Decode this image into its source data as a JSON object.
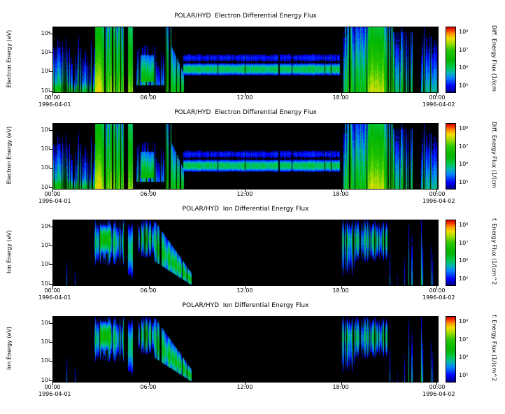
{
  "colors": {
    "background": "#ffffff",
    "plot_background": "#000000",
    "axis": "#000000",
    "colormap_stops": [
      [
        0.0,
        "#000080"
      ],
      [
        0.1,
        "#0000ff"
      ],
      [
        0.22,
        "#0080ff"
      ],
      [
        0.3,
        "#00b4b4"
      ],
      [
        0.38,
        "#00c850"
      ],
      [
        0.5,
        "#00b400"
      ],
      [
        0.65,
        "#28c800"
      ],
      [
        0.75,
        "#a0dc00"
      ],
      [
        0.83,
        "#f0e000"
      ],
      [
        0.9,
        "#ff9600"
      ],
      [
        0.95,
        "#ff3c00"
      ],
      [
        1.0,
        "#c80000"
      ]
    ]
  },
  "chart_data": [
    {
      "type": "heatmap",
      "subtype": "time-energy-spectrogram",
      "title": "POLAR/HYD  Electron Differential Energy Flux",
      "x": {
        "label": "",
        "range_hours": [
          0,
          24
        ],
        "ticks": [
          "00:00",
          "06:00",
          "12:00",
          "18:00",
          "00:00"
        ],
        "date_start": "1996-04-01",
        "date_end": "1996-04-02"
      },
      "y": {
        "label": "Electron Energy (eV)",
        "scale": "log",
        "log_range_eV": [
          0.95,
          4.35
        ],
        "ticks": [
          "10⁴",
          "10³",
          "10²",
          "10¹"
        ]
      },
      "z": {
        "label": "Diff. Energy Flux (1/(cm",
        "scale": "log",
        "log_range": [
          4.7,
          8.3
        ],
        "ticks": [
          "10⁸",
          "10⁷",
          "10⁶",
          "10⁵"
        ]
      },
      "features": [
        {
          "kind": "stripes",
          "t0": 0.0,
          "t1": 2.6,
          "e0": 0.95,
          "e1": 3.3,
          "peak": 6.6,
          "gap": 0.3,
          "spike": 0.92
        },
        {
          "kind": "stripes",
          "t0": 0.0,
          "t1": 2.6,
          "e0": 0.95,
          "e1": 1.7,
          "peak": 7.2,
          "gap": 0.25
        },
        {
          "kind": "block",
          "t0": 2.6,
          "t1": 3.05,
          "e0": 0.95,
          "e1": 4.35,
          "peak": 8.0
        },
        {
          "kind": "stripes",
          "t0": 3.05,
          "t1": 4.45,
          "e0": 0.95,
          "e1": 4.35,
          "peak": 7.7,
          "gap": 0.22
        },
        {
          "kind": "block",
          "t0": 4.65,
          "t1": 4.95,
          "e0": 0.95,
          "e1": 4.35,
          "peak": 7.7
        },
        {
          "kind": "stripes",
          "t0": 5.15,
          "t1": 6.9,
          "e0": 1.3,
          "e1": 3.4,
          "peak": 6.5,
          "gap": 0.2
        },
        {
          "kind": "block",
          "t0": 5.45,
          "t1": 6.25,
          "e0": 1.5,
          "e1": 2.9,
          "peak": 7.0
        },
        {
          "kind": "stripes",
          "t0": 6.95,
          "t1": 7.35,
          "e0": 0.95,
          "e1": 4.35,
          "peak": 7.6,
          "gap": 0.35
        },
        {
          "kind": "dispersion",
          "t0": 7.35,
          "t1": 8.15,
          "eTop0": 3.4,
          "eTop1": 1.9,
          "eBot0": 0.95,
          "eBot1": 0.95,
          "peak": 7.1,
          "gap": 0.15
        },
        {
          "kind": "band",
          "t0": 8.1,
          "t1": 17.85,
          "e0": 1.75,
          "e1": 2.55,
          "peak": 6.4
        },
        {
          "kind": "band",
          "t0": 8.1,
          "t1": 17.85,
          "e0": 2.3,
          "e1": 3.2,
          "peak": 5.4
        },
        {
          "kind": "stripes",
          "t0": 18.05,
          "t1": 19.6,
          "e0": 0.95,
          "e1": 4.35,
          "peak": 7.3,
          "gap": 0.15
        },
        {
          "kind": "block",
          "t0": 19.6,
          "t1": 20.6,
          "e0": 0.95,
          "e1": 4.35,
          "peak": 7.9
        },
        {
          "kind": "stripes",
          "t0": 20.6,
          "t1": 21.2,
          "e0": 0.95,
          "e1": 4.35,
          "peak": 7.5,
          "gap": 0.2
        },
        {
          "kind": "stripes",
          "t0": 21.2,
          "t1": 22.4,
          "e0": 0.95,
          "e1": 4.1,
          "peak": 6.9,
          "gap": 0.3,
          "spike": 0.9
        },
        {
          "kind": "stripes",
          "t0": 22.95,
          "t1": 24.0,
          "e0": 0.95,
          "e1": 3.9,
          "peak": 6.7,
          "gap": 0.35,
          "spike": 0.9
        }
      ]
    },
    {
      "type": "heatmap",
      "subtype": "time-energy-spectrogram",
      "title": "POLAR/HYD  Electron Differential Energy Flux",
      "x": {
        "label": "",
        "range_hours": [
          0,
          24
        ],
        "ticks": [
          "00:00",
          "06:00",
          "12:00",
          "18:00",
          "00:00"
        ],
        "date_start": "1996-04-01",
        "date_end": "1996-04-02"
      },
      "y": {
        "label": "Electron Energy (eV)",
        "scale": "log",
        "log_range_eV": [
          0.95,
          4.35
        ],
        "ticks": [
          "10⁴",
          "10³",
          "10²",
          "10¹"
        ]
      },
      "z": {
        "label": "Diff. Energy Flux (1/(cm",
        "scale": "log",
        "log_range": [
          4.7,
          8.3
        ],
        "ticks": [
          "10⁸",
          "10⁷",
          "10⁶",
          "10⁵"
        ]
      },
      "features": [
        {
          "kind": "stripes",
          "t0": 0.0,
          "t1": 2.6,
          "e0": 0.95,
          "e1": 3.3,
          "peak": 6.6,
          "gap": 0.3,
          "spike": 0.92
        },
        {
          "kind": "stripes",
          "t0": 0.0,
          "t1": 2.6,
          "e0": 0.95,
          "e1": 1.7,
          "peak": 7.2,
          "gap": 0.25
        },
        {
          "kind": "block",
          "t0": 2.6,
          "t1": 3.05,
          "e0": 0.95,
          "e1": 4.35,
          "peak": 8.0
        },
        {
          "kind": "stripes",
          "t0": 3.05,
          "t1": 4.45,
          "e0": 0.95,
          "e1": 4.35,
          "peak": 7.7,
          "gap": 0.22
        },
        {
          "kind": "block",
          "t0": 4.65,
          "t1": 4.95,
          "e0": 0.95,
          "e1": 4.35,
          "peak": 7.7
        },
        {
          "kind": "stripes",
          "t0": 5.15,
          "t1": 6.9,
          "e0": 1.3,
          "e1": 3.4,
          "peak": 6.5,
          "gap": 0.2
        },
        {
          "kind": "block",
          "t0": 5.45,
          "t1": 6.25,
          "e0": 1.5,
          "e1": 2.9,
          "peak": 7.0
        },
        {
          "kind": "stripes",
          "t0": 6.95,
          "t1": 7.35,
          "e0": 0.95,
          "e1": 4.35,
          "peak": 7.6,
          "gap": 0.35
        },
        {
          "kind": "dispersion",
          "t0": 7.35,
          "t1": 8.15,
          "eTop0": 3.4,
          "eTop1": 1.9,
          "eBot0": 0.95,
          "eBot1": 0.95,
          "peak": 7.1,
          "gap": 0.15
        },
        {
          "kind": "band",
          "t0": 8.1,
          "t1": 17.85,
          "e0": 1.75,
          "e1": 2.55,
          "peak": 6.4
        },
        {
          "kind": "band",
          "t0": 8.1,
          "t1": 17.85,
          "e0": 2.3,
          "e1": 3.2,
          "peak": 5.4
        },
        {
          "kind": "stripes",
          "t0": 18.05,
          "t1": 19.6,
          "e0": 0.95,
          "e1": 4.35,
          "peak": 7.3,
          "gap": 0.15
        },
        {
          "kind": "block",
          "t0": 19.6,
          "t1": 20.6,
          "e0": 0.95,
          "e1": 4.35,
          "peak": 7.9
        },
        {
          "kind": "stripes",
          "t0": 20.6,
          "t1": 21.2,
          "e0": 0.95,
          "e1": 4.35,
          "peak": 7.5,
          "gap": 0.2
        },
        {
          "kind": "stripes",
          "t0": 21.2,
          "t1": 22.4,
          "e0": 0.95,
          "e1": 4.1,
          "peak": 6.9,
          "gap": 0.3,
          "spike": 0.9
        },
        {
          "kind": "stripes",
          "t0": 22.95,
          "t1": 24.0,
          "e0": 0.95,
          "e1": 3.9,
          "peak": 6.7,
          "gap": 0.35,
          "spike": 0.9
        }
      ]
    },
    {
      "type": "heatmap",
      "subtype": "time-energy-spectrogram",
      "title": "POLAR/HYD  Ion Differential Energy Flux",
      "x": {
        "label": "",
        "range_hours": [
          0,
          24
        ],
        "ticks": [
          "00:00",
          "06:00",
          "12:00",
          "18:00",
          "00:00"
        ],
        "date_start": "1996-04-01",
        "date_end": "1996-04-02"
      },
      "y": {
        "label": "Ion Energy (eV)",
        "scale": "log",
        "log_range_eV": [
          0.95,
          4.35
        ],
        "ticks": [
          "10⁴",
          "10³",
          "10²",
          "10¹"
        ]
      },
      "z": {
        "label": "f. Energy Flux (1/(cm^2",
        "scale": "log",
        "log_range": [
          4.7,
          8.3
        ],
        "ticks": [
          "10⁸",
          "10⁷",
          "10⁶",
          "10⁵"
        ]
      },
      "features": [
        {
          "kind": "lines",
          "t0": 0.35,
          "t1": 1.6,
          "e0": 0.95,
          "e1": 3.2,
          "peak": 5.9,
          "density": 0.8
        },
        {
          "kind": "stripes",
          "t0": 2.55,
          "t1": 4.4,
          "e0": 2.0,
          "e1": 4.35,
          "peak": 6.8,
          "gap": 0.2,
          "prof": "center"
        },
        {
          "kind": "block",
          "t0": 2.9,
          "t1": 3.6,
          "e0": 2.6,
          "e1": 4.1,
          "peak": 7.0,
          "prof": "center"
        },
        {
          "kind": "block",
          "t0": 4.65,
          "t1": 4.95,
          "e0": 1.2,
          "e1": 4.35,
          "peak": 6.4,
          "prof": "center"
        },
        {
          "kind": "stripes",
          "t0": 5.3,
          "t1": 6.3,
          "e0": 2.4,
          "e1": 4.35,
          "peak": 6.6,
          "gap": 0.25,
          "prof": "center"
        },
        {
          "kind": "dispersion",
          "t0": 6.3,
          "t1": 8.6,
          "eTop0": 4.35,
          "eTop1": 1.6,
          "eBot0": 2.2,
          "eBot1": 0.95,
          "peak": 6.9,
          "gap": 0.12,
          "grad": "center"
        },
        {
          "kind": "stripes",
          "t0": 18.0,
          "t1": 20.9,
          "e0": 2.2,
          "e1": 4.35,
          "peak": 6.7,
          "gap": 0.2,
          "prof": "center"
        },
        {
          "kind": "stripes",
          "t0": 18.0,
          "t1": 18.8,
          "e0": 1.3,
          "e1": 4.35,
          "peak": 6.4,
          "gap": 0.2,
          "prof": "center"
        },
        {
          "kind": "lines",
          "t0": 20.9,
          "t1": 21.5,
          "e0": 0.95,
          "e1": 3.9,
          "peak": 6.1,
          "density": 0.72
        },
        {
          "kind": "lines",
          "t0": 21.9,
          "t1": 23.9,
          "e0": 0.95,
          "e1": 4.35,
          "peak": 6.4,
          "density": 0.75
        }
      ]
    },
    {
      "type": "heatmap",
      "subtype": "time-energy-spectrogram",
      "title": "POLAR/HYD  Ion Differential Energy Flux",
      "x": {
        "label": "",
        "range_hours": [
          0,
          24
        ],
        "ticks": [
          "00:00",
          "06:00",
          "12:00",
          "18:00",
          "00:00"
        ],
        "date_start": "1996-04-01",
        "date_end": "1996-04-02"
      },
      "y": {
        "label": "Ion Energy (eV)",
        "scale": "log",
        "log_range_eV": [
          0.95,
          4.35
        ],
        "ticks": [
          "10⁴",
          "10³",
          "10²",
          "10¹"
        ]
      },
      "z": {
        "label": "f. Energy Flux (1/(cm^2",
        "scale": "log",
        "log_range": [
          4.7,
          8.3
        ],
        "ticks": [
          "10⁸",
          "10⁷",
          "10⁶",
          "10⁵"
        ]
      },
      "features": [
        {
          "kind": "lines",
          "t0": 0.35,
          "t1": 1.6,
          "e0": 0.95,
          "e1": 3.2,
          "peak": 5.9,
          "density": 0.8
        },
        {
          "kind": "stripes",
          "t0": 2.55,
          "t1": 4.4,
          "e0": 2.0,
          "e1": 4.35,
          "peak": 6.8,
          "gap": 0.2,
          "prof": "center"
        },
        {
          "kind": "block",
          "t0": 2.9,
          "t1": 3.6,
          "e0": 2.6,
          "e1": 4.1,
          "peak": 7.0,
          "prof": "center"
        },
        {
          "kind": "block",
          "t0": 4.65,
          "t1": 4.95,
          "e0": 1.2,
          "e1": 4.35,
          "peak": 6.4,
          "prof": "center"
        },
        {
          "kind": "stripes",
          "t0": 5.3,
          "t1": 6.3,
          "e0": 2.4,
          "e1": 4.35,
          "peak": 6.6,
          "gap": 0.25,
          "prof": "center"
        },
        {
          "kind": "dispersion",
          "t0": 6.3,
          "t1": 8.6,
          "eTop0": 4.35,
          "eTop1": 1.6,
          "eBot0": 2.2,
          "eBot1": 0.95,
          "peak": 6.9,
          "gap": 0.12,
          "grad": "center"
        },
        {
          "kind": "stripes",
          "t0": 18.0,
          "t1": 20.9,
          "e0": 2.2,
          "e1": 4.35,
          "peak": 6.7,
          "gap": 0.2,
          "prof": "center"
        },
        {
          "kind": "stripes",
          "t0": 18.0,
          "t1": 18.8,
          "e0": 1.3,
          "e1": 4.35,
          "peak": 6.4,
          "gap": 0.2,
          "prof": "center"
        },
        {
          "kind": "lines",
          "t0": 20.9,
          "t1": 21.5,
          "e0": 0.95,
          "e1": 3.9,
          "peak": 6.1,
          "density": 0.72
        },
        {
          "kind": "lines",
          "t0": 21.9,
          "t1": 23.9,
          "e0": 0.95,
          "e1": 4.35,
          "peak": 6.4,
          "density": 0.75
        }
      ]
    }
  ]
}
